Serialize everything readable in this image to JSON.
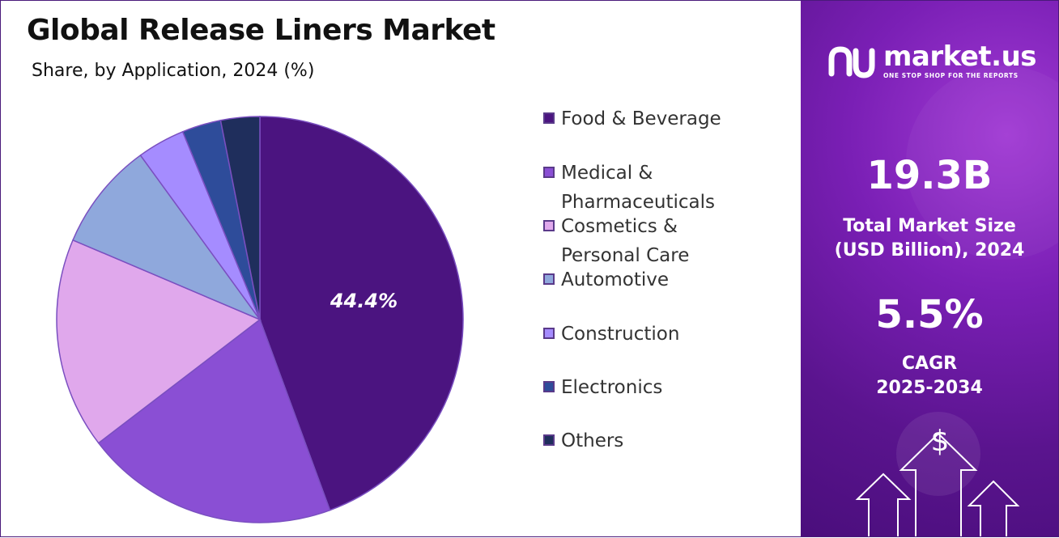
{
  "header": {
    "title": "Global Release Liners Market",
    "subtitle": "Share, by Application, 2024 (%)"
  },
  "chart_data": {
    "type": "pie",
    "title": "Global Release Liners Market",
    "subtitle": "Share, by Application, 2024 (%)",
    "categories": [
      "Food & Beverage",
      "Medical & Pharmaceuticals",
      "Cosmetics & Personal Care",
      "Automotive",
      "Construction",
      "Electronics",
      "Others"
    ],
    "values": [
      44.4,
      20.2,
      16.8,
      8.6,
      3.8,
      3.1,
      3.1
    ],
    "colors": [
      "#4b1480",
      "#8a4fd4",
      "#e0a8ec",
      "#8fa8dc",
      "#a58cff",
      "#2e4c9a",
      "#1f2e5c"
    ],
    "data_labels": [
      "44.4%",
      "",
      "",
      "",
      "",
      "",
      ""
    ],
    "legend_position": "right"
  },
  "sidebar": {
    "brand_name": "market.us",
    "brand_tagline": "ONE STOP SHOP FOR THE REPORTS",
    "market_size_value": "19.3B",
    "market_size_label_line1": "Total Market Size",
    "market_size_label_line2": "(USD Billion), 2024",
    "cagr_value": "5.5%",
    "cagr_label_line1": "CAGR",
    "cagr_label_line2": "2025-2034",
    "accent_color": "#7a1fb5"
  }
}
